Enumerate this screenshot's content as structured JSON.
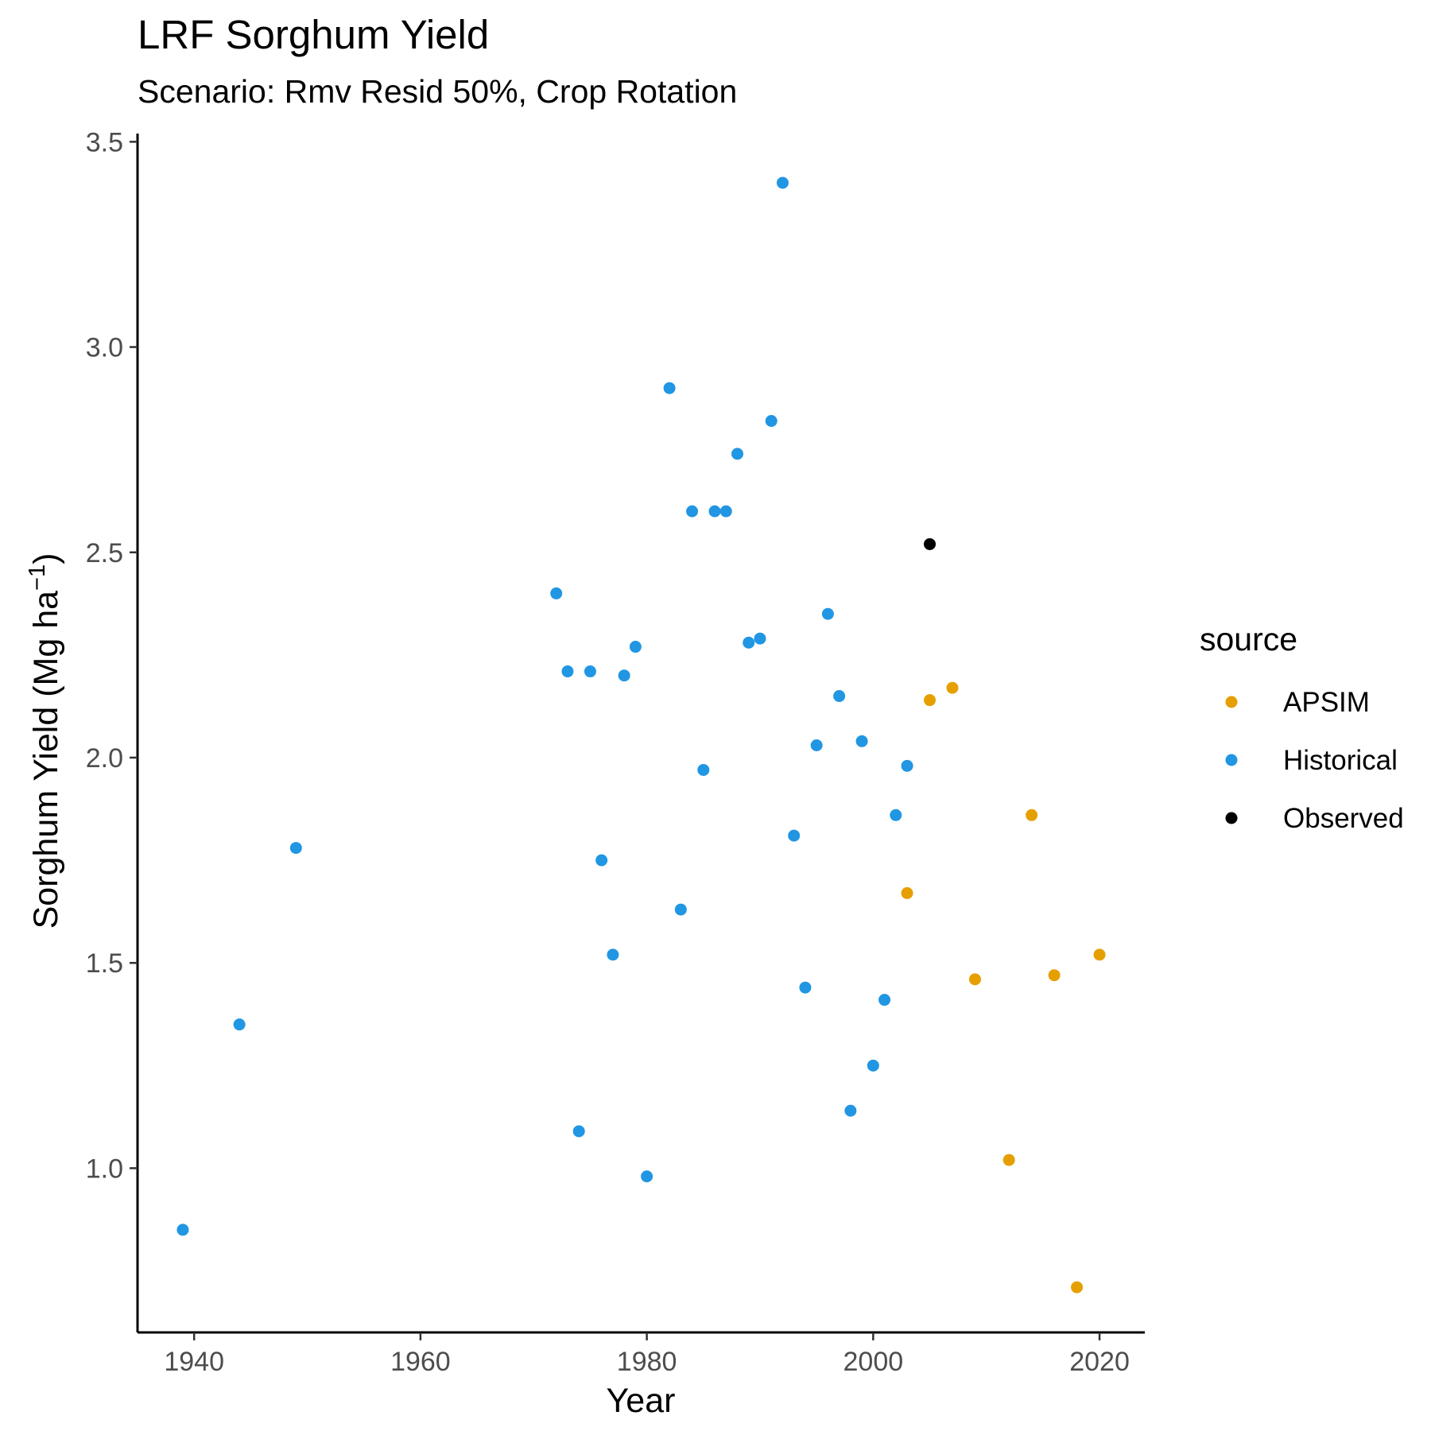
{
  "chart_data": {
    "type": "scatter",
    "title": "LRF Sorghum Yield",
    "subtitle": "Scenario: Rmv Resid 50%, Crop Rotation",
    "xlabel": "Year",
    "ylabel_main": "Sorghum Yield (Mg ha",
    "ylabel_sup": "−1",
    "ylabel_close": ")",
    "xlim": [
      1935,
      2024
    ],
    "ylim": [
      0.6,
      3.52
    ],
    "xticks": [
      1940,
      1960,
      1980,
      2000,
      2020
    ],
    "xtick_labels": [
      "1940",
      "1960",
      "1980",
      "2000",
      "2020"
    ],
    "yticks": [
      1.0,
      1.5,
      2.0,
      2.5,
      3.0,
      3.5
    ],
    "ytick_labels": [
      "1.0",
      "1.5",
      "2.0",
      "2.5",
      "3.0",
      "3.5"
    ],
    "grid": false,
    "legend": {
      "title": "source",
      "placement": "right",
      "entries": [
        "APSIM",
        "Historical",
        "Observed"
      ]
    },
    "series": [
      {
        "name": "APSIM",
        "color": "#E69F00",
        "points": [
          [
            2003,
            1.67
          ],
          [
            2005,
            2.14
          ],
          [
            2007,
            2.17
          ],
          [
            2009,
            1.46
          ],
          [
            2012,
            1.02
          ],
          [
            2014,
            1.86
          ],
          [
            2016,
            1.47
          ],
          [
            2018,
            0.71
          ],
          [
            2020,
            1.52
          ]
        ]
      },
      {
        "name": "Historical",
        "color": "#2196E3",
        "points": [
          [
            1939,
            0.85
          ],
          [
            1944,
            1.35
          ],
          [
            1949,
            1.78
          ],
          [
            1972,
            2.4
          ],
          [
            1973,
            2.21
          ],
          [
            1974,
            1.09
          ],
          [
            1975,
            2.21
          ],
          [
            1976,
            1.75
          ],
          [
            1977,
            1.52
          ],
          [
            1978,
            2.2
          ],
          [
            1979,
            2.27
          ],
          [
            1980,
            0.98
          ],
          [
            1982,
            2.9
          ],
          [
            1983,
            1.63
          ],
          [
            1984,
            2.6
          ],
          [
            1985,
            1.97
          ],
          [
            1986,
            2.6
          ],
          [
            1987,
            2.6
          ],
          [
            1988,
            2.74
          ],
          [
            1989,
            2.28
          ],
          [
            1990,
            2.29
          ],
          [
            1991,
            2.82
          ],
          [
            1992,
            3.4
          ],
          [
            1993,
            1.81
          ],
          [
            1994,
            1.44
          ],
          [
            1995,
            2.03
          ],
          [
            1996,
            2.35
          ],
          [
            1997,
            2.15
          ],
          [
            1998,
            1.14
          ],
          [
            1999,
            2.04
          ],
          [
            2000,
            1.25
          ],
          [
            2001,
            1.41
          ],
          [
            2002,
            1.86
          ],
          [
            2003,
            1.98
          ]
        ]
      },
      {
        "name": "Observed",
        "color": "#000000",
        "points": [
          [
            2005,
            2.52
          ]
        ]
      }
    ]
  }
}
